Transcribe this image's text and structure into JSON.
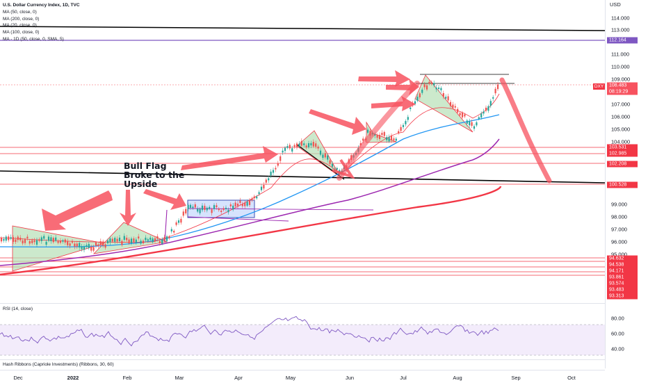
{
  "legend": {
    "title": "U.S. Dollar Currency Index, 1D, TVC",
    "indicators": [
      "MA (50, close, 0)",
      "MA (200, close, 0)",
      "MA (20, close, 0)",
      "MA (100, close, 0)",
      "MA - 1D (50, close, 0, SMA, 5)"
    ]
  },
  "symbol_badge": "DXY",
  "annotation": {
    "line1": "Bull Flag",
    "line2": "Broke to the",
    "line3": "Upside"
  },
  "price_axis": {
    "currency": "USD",
    "ticks": [
      "114.000",
      "113.000",
      "111.000",
      "110.000",
      "109.000",
      "107.000",
      "106.000",
      "105.000",
      "104.000",
      "99.000",
      "98.000",
      "97.000",
      "96.000",
      "95.000"
    ]
  },
  "price_tags": [
    {
      "value": "112.164",
      "color": "#7e57c2"
    },
    {
      "value": "108.483",
      "color": "#f7525f"
    },
    {
      "value": "08:19:29",
      "color": "#f7525f"
    },
    {
      "value": "103.531",
      "color": "#f23645"
    },
    {
      "value": "102.985",
      "color": "#f23645"
    },
    {
      "value": "102.208",
      "color": "#f23645"
    },
    {
      "value": "100.528",
      "color": "#f23645"
    },
    {
      "value": "94.632",
      "color": "#f23645"
    },
    {
      "value": "94.538",
      "color": "#f23645"
    },
    {
      "value": "94.171",
      "color": "#f23645"
    },
    {
      "value": "93.861",
      "color": "#f23645"
    },
    {
      "value": "93.574",
      "color": "#f23645"
    },
    {
      "value": "93.483",
      "color": "#f23645"
    },
    {
      "value": "93.313",
      "color": "#f23645"
    }
  ],
  "rsi": {
    "label": "RSI (14, close)",
    "ticks": [
      "80.00",
      "60.00",
      "40.00"
    ]
  },
  "hash_ribbons": {
    "label": "Hash Ribbons (Capriole Investments) (Ribbons, 30, 60)"
  },
  "time_axis": {
    "labels": [
      {
        "text": "Dec",
        "bold": false
      },
      {
        "text": "2022",
        "bold": true
      },
      {
        "text": "Feb",
        "bold": false
      },
      {
        "text": "Mar",
        "bold": false
      },
      {
        "text": "Apr",
        "bold": false
      },
      {
        "text": "May",
        "bold": false
      },
      {
        "text": "Jun",
        "bold": false
      },
      {
        "text": "Jul",
        "bold": false
      },
      {
        "text": "Aug",
        "bold": false
      },
      {
        "text": "Sep",
        "bold": false
      },
      {
        "text": "Oct",
        "bold": false
      }
    ]
  },
  "colors": {
    "candle_up": "#26a69a",
    "candle_down": "#ef5350",
    "ma20": "#f23645",
    "ma50": "#2196f3",
    "ma100": "#9c27b0",
    "ma200": "#f23645",
    "rsi_line": "#7e57c2",
    "rsi_band": "#f3ecfb",
    "arrow": "#f7525f",
    "trendline": "#000000"
  }
}
